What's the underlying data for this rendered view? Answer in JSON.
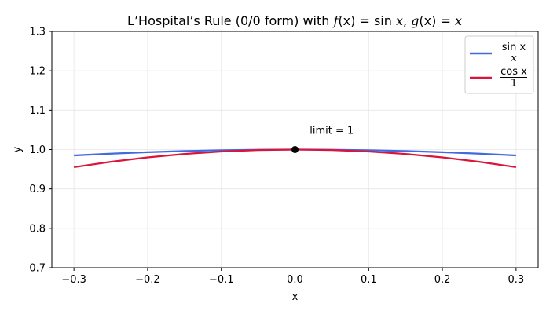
{
  "chart_data": {
    "type": "line",
    "title": {
      "text1": "L’Hospital’s Rule  (0/0 form)  with  ",
      "f_name": "f",
      "f_arg": "(x) = sin ",
      "f_var": "x",
      "sep": ",  ",
      "g_name": "g",
      "g_arg": "(x) = ",
      "g_var": "x"
    },
    "xlabel": "x",
    "ylabel": "y",
    "xlim": [
      -0.33,
      0.33
    ],
    "ylim": [
      0.7,
      1.3
    ],
    "xticks": [
      -0.3,
      -0.2,
      -0.1,
      0.0,
      0.1,
      0.2,
      0.3
    ],
    "xtick_labels": [
      "−0.3",
      "−0.2",
      "−0.1",
      "0.0",
      "0.1",
      "0.2",
      "0.3"
    ],
    "yticks": [
      0.7,
      0.8,
      0.9,
      1.0,
      1.1,
      1.2,
      1.3
    ],
    "ytick_labels": [
      "0.7",
      "0.8",
      "0.9",
      "1.0",
      "1.1",
      "1.2",
      "1.3"
    ],
    "grid": true,
    "legend_position": "top-right",
    "x": [
      -0.3,
      -0.25,
      -0.2,
      -0.15,
      -0.1,
      -0.05,
      0.0,
      0.05,
      0.1,
      0.15,
      0.2,
      0.25,
      0.3
    ],
    "series": [
      {
        "name": "sin x / x",
        "legend_num": "sin x",
        "legend_den": "x",
        "color": "#4169e1",
        "values": [
          0.985,
          0.9896,
          0.9933,
          0.9963,
          0.9983,
          0.9996,
          1.0,
          0.9996,
          0.9983,
          0.9963,
          0.9933,
          0.9896,
          0.985
        ]
      },
      {
        "name": "cos x / 1",
        "legend_num": "cos x",
        "legend_den": "1",
        "color": "#dc143c",
        "values": [
          0.9553,
          0.9689,
          0.9801,
          0.9888,
          0.995,
          0.9988,
          1.0,
          0.9988,
          0.995,
          0.9888,
          0.9801,
          0.9689,
          0.9553
        ]
      }
    ],
    "limit_point": {
      "x": 0.0,
      "y": 1.0,
      "color": "#000000"
    },
    "annotation": {
      "text": "limit = 1",
      "x": 0.02,
      "y": 1.05
    }
  }
}
